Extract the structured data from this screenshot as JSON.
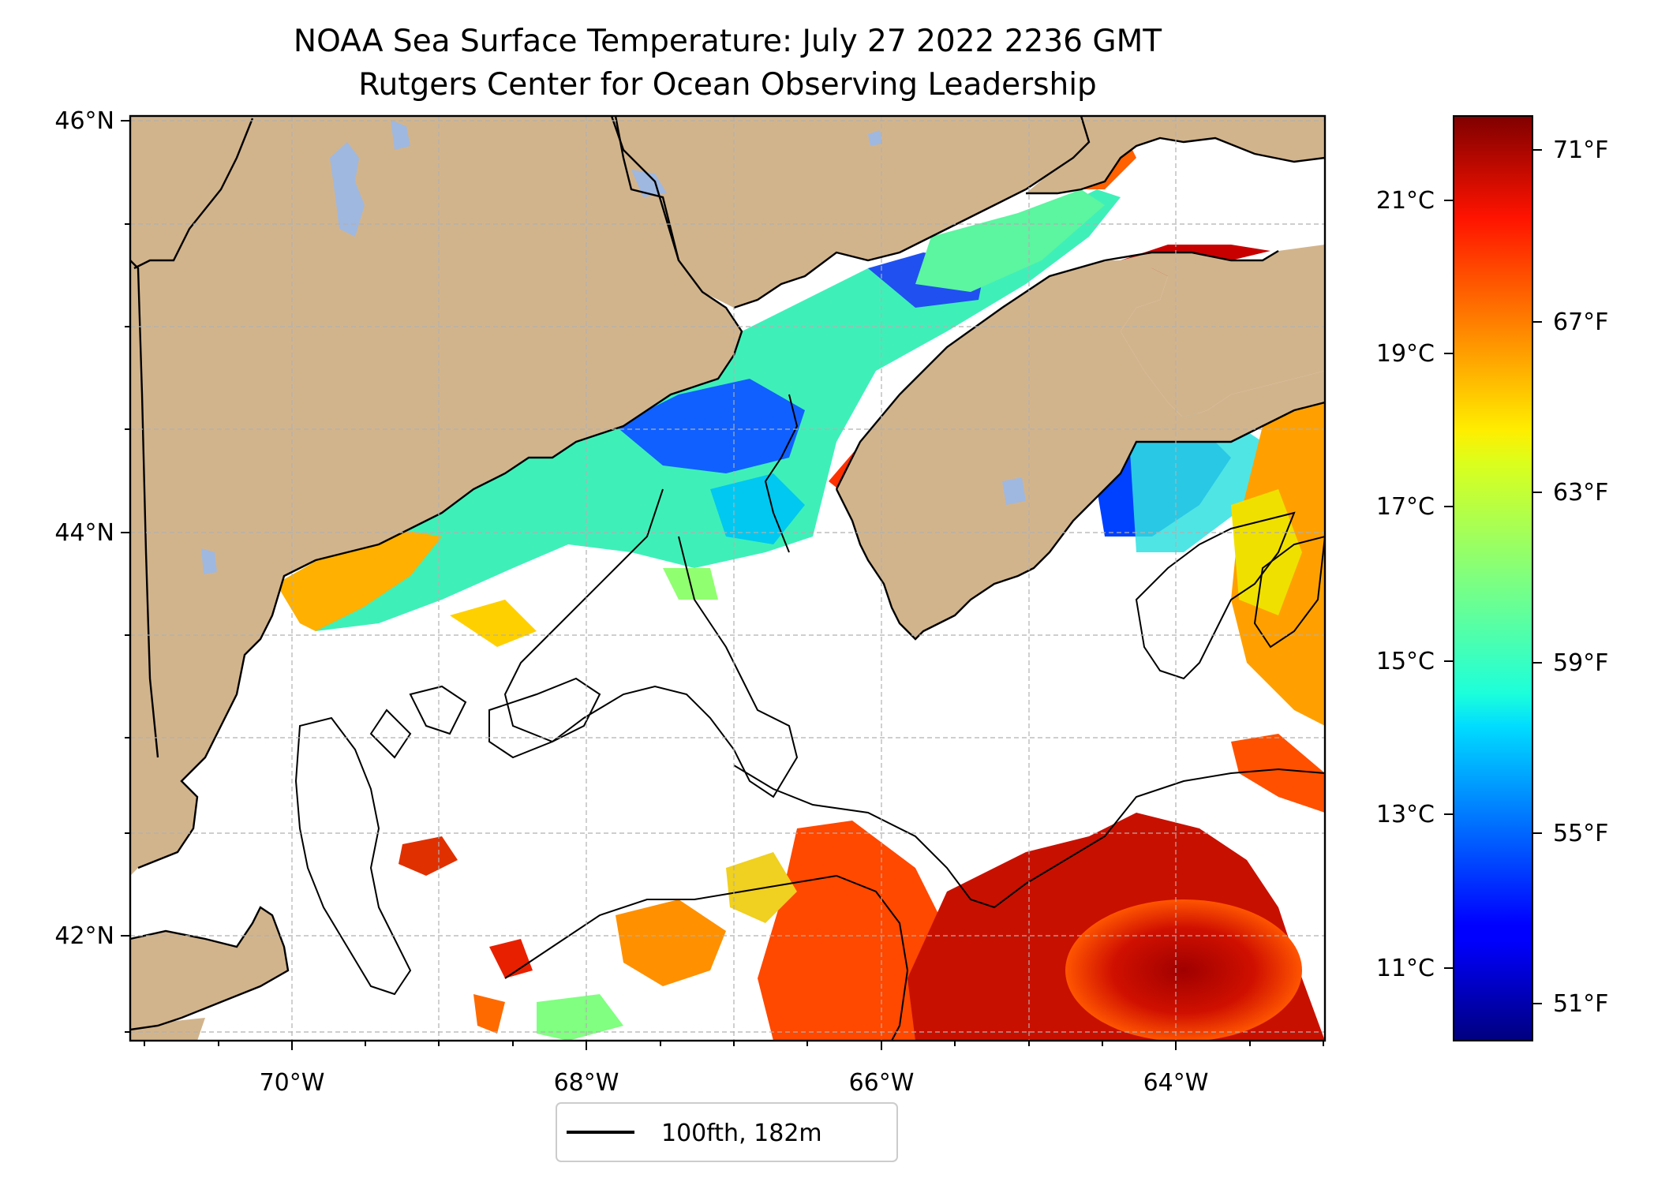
{
  "title": {
    "line1": "NOAA Sea Surface Temperature: July 27 2022 2236 GMT",
    "line2": "Rutgers Center for Ocean Observing Leadership"
  },
  "map": {
    "lat_ticks": [
      "46°N",
      "44°N",
      "42°N"
    ],
    "lon_ticks": [
      "70°W",
      "68°W",
      "66°W",
      "64°W"
    ],
    "extent": {
      "lon": [
        -71.1,
        -63.0
      ],
      "lat": [
        41.5,
        46.0
      ]
    },
    "land_color": "#d2b48c",
    "lake_color": "#9fb8e0"
  },
  "legend": {
    "label": "100fth, 182m"
  },
  "colorbar": {
    "celsius_ticks": [
      "21°C",
      "19°C",
      "17°C",
      "15°C",
      "13°C",
      "11°C"
    ],
    "fahrenheit_ticks": [
      "71°F",
      "67°F",
      "63°F",
      "59°F",
      "55°F",
      "51°F"
    ],
    "range_f": [
      49.5,
      72.5
    ],
    "colormap": "jet"
  }
}
